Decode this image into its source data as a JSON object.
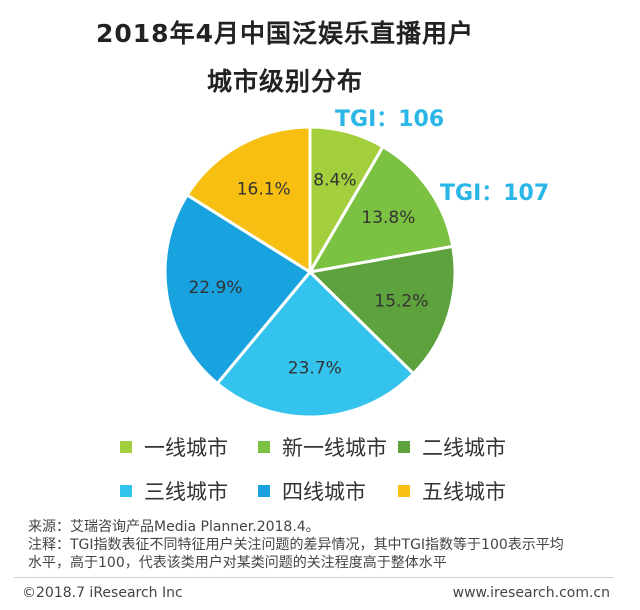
{
  "title_line1": "2018年4月中国泛娱乐直播用户",
  "title_line2": "城市级别分布",
  "chart_data": {
    "type": "pie",
    "title": "2018年4月中国泛娱乐直播用户城市级别分布",
    "slices": [
      {
        "label": "一线城市",
        "value": 8.4,
        "display": "8.4%",
        "color": "#a3cf3d"
      },
      {
        "label": "新一线城市",
        "value": 13.8,
        "display": "13.8%",
        "color": "#7cc242"
      },
      {
        "label": "二线城市",
        "value": 15.2,
        "display": "15.2%",
        "color": "#5ea23e"
      },
      {
        "label": "三线城市",
        "value": 23.7,
        "display": "23.7%",
        "color": "#33c3ec"
      },
      {
        "label": "四线城市",
        "value": 22.9,
        "display": "22.9%",
        "color": "#19a2e0"
      },
      {
        "label": "五线城市",
        "value": 16.1,
        "display": "16.1%",
        "color": "#f6bf12"
      }
    ],
    "annotations": [
      {
        "text": "TGI：106",
        "slice": "一线城市",
        "color": "#2ab6e6"
      },
      {
        "text": "TGI：107",
        "slice": "新一线城市",
        "color": "#2ab6e6"
      }
    ],
    "legend_position": "bottom"
  },
  "footnotes": {
    "source": "来源：艾瑞咨询产品Media Planner.2018.4。",
    "note_line1": "注释：TGI指数表征不同特征用户关注问题的差异情况，其中TGI指数等于100表示平均",
    "note_line2": "水平，高于100，代表该类用户对某类问题的关注程度高于整体水平"
  },
  "copyright": "©2018.7 iResearch Inc",
  "website": "www.iresearch.com.cn"
}
